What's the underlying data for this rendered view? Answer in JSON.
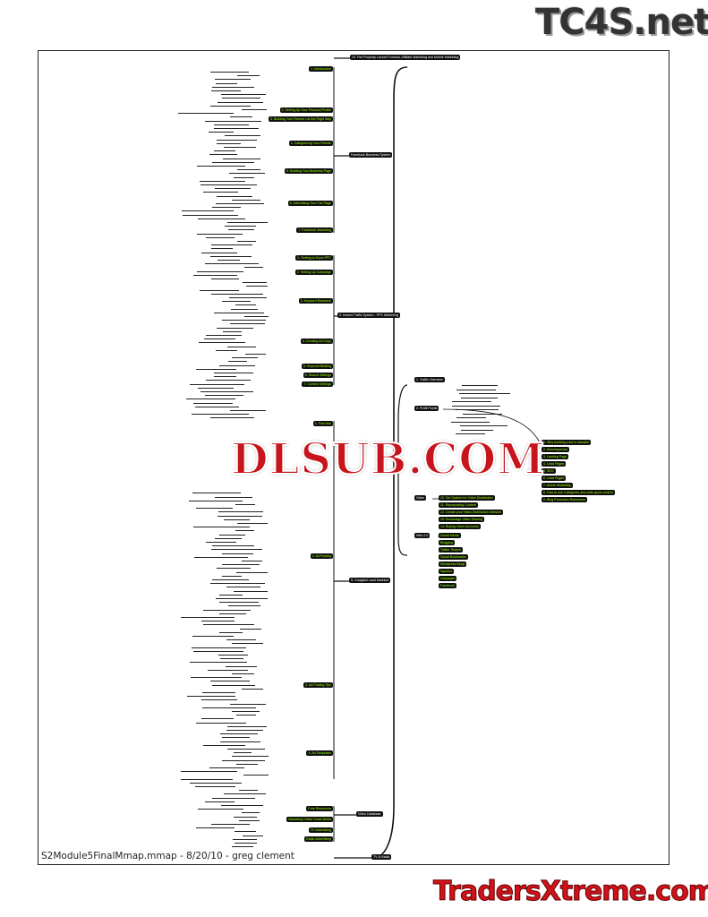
{
  "logos": {
    "top": "TC4S.net",
    "watermark": "DLSUB.COM",
    "bottom": "TradersXtreme.com"
  },
  "footer": "S2Module5FinalMmap.mmap - 8/20/10 - greg clement",
  "colors": {
    "node_bg": "#111111",
    "green_text": "#99ff00",
    "line": "#111111",
    "watermark": "#c8141c"
  },
  "main_nodes": [
    "10. Fire Property Launch Formula, Affiliate Marketing and Mobile Marketing",
    "Facebook Business System",
    "3. Instant Traffic System - PPC Marketing",
    "5. Craigslist Lead Machine",
    "Video Database",
    "TV & Radio"
  ],
  "right_nodes": [
    "1. Traffic Overview",
    "2. Profit Points",
    "Video",
    "Web 2.0"
  ],
  "left_topics": [
    "1. Introduction",
    "2. Setting Up Your Personal Profile",
    "3. Building Your Friends List the Right Way",
    "4. Categorizing Your Friends",
    "5. Building Your Business Page",
    "6. Advertising Your Fan Page",
    "7. Facebook Marketing",
    "1. Getting to Know PPC",
    "2. Setting Up Campaign",
    "3. Keyword Research",
    "4. Creating Ad Copy",
    "5. Keyword Bidding",
    "6. Search Settings",
    "7. Content Settings",
    "1. Free Ads",
    "2. Ad Posting",
    "3. Ad Posting Tips",
    "4. Ad Templates",
    "Free Resources",
    "Marketing Online Vocal Media",
    "TV Advertising",
    "Radio Advertising"
  ],
  "right_topics": [
    "1. Why building a list is valuable",
    "2. Autoresponder",
    "3. Landing Page",
    "4. Lead Pages",
    "5. SEO",
    "6. Lead Pages",
    "7. Article Marketing",
    "8. How to use Categories and write good content",
    "9. Blog Promotion Resources",
    "10. Set System for Video Distribution",
    "11. Repurposing Content",
    "12. Create your Video Distribution Network",
    "13. Encourage Video Sharing",
    "14. Buying Video Accounts",
    "Social Media",
    "Blogging",
    "Twitter Search",
    "Social Bookmarks",
    "Wordpress Blogs",
    "Squidoo",
    "Hubpages",
    "Facebook"
  ]
}
